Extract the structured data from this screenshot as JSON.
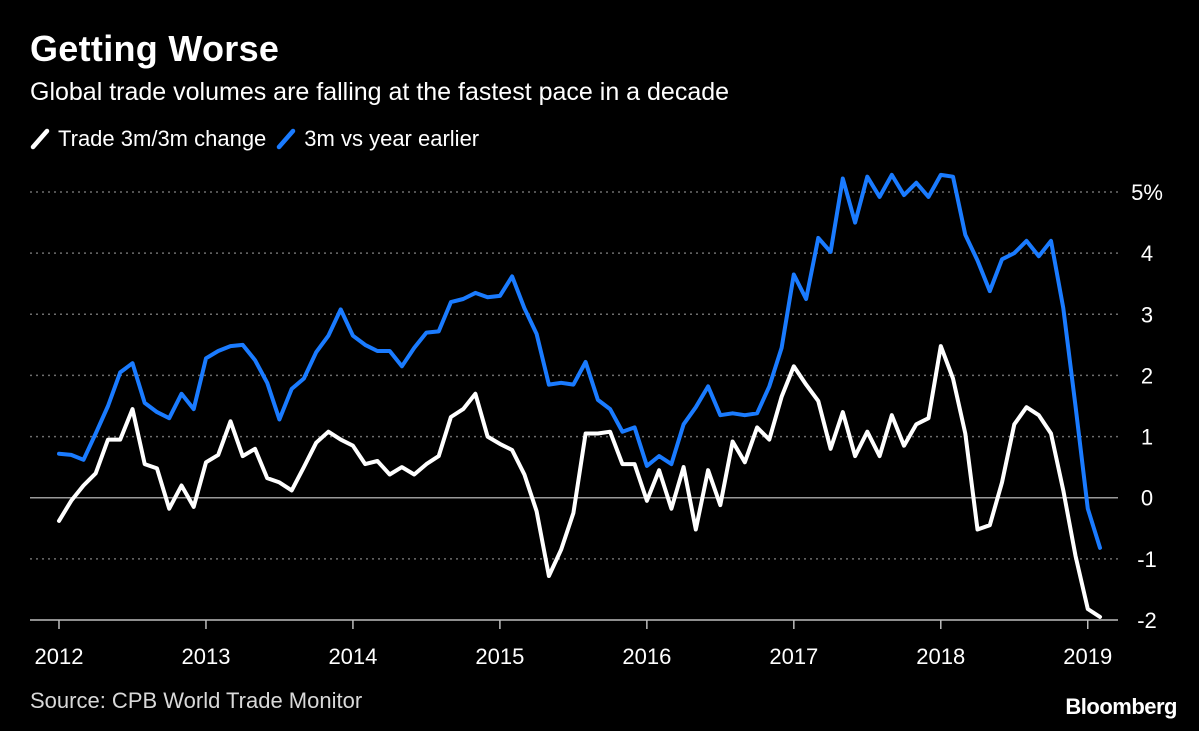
{
  "title": "Getting Worse",
  "subtitle": "Global trade volumes are falling at the fastest pace in a decade",
  "source": "Source: CPB World Trade Monitor",
  "brand": "Bloomberg",
  "colors": {
    "background": "#000000",
    "white_series": "#ffffff",
    "blue_series": "#1a7bff",
    "grid": "#6e6e6e",
    "zero": "#9a9a9a"
  },
  "chart_data": {
    "type": "line",
    "legend_placement": "top-left",
    "grid": true,
    "ylim": [
      -2,
      5
    ],
    "xlim": [
      "2012-01",
      "2019-02"
    ],
    "y_ticks": [
      {
        "value": 5,
        "label": "5%"
      },
      {
        "value": 4,
        "label": "4"
      },
      {
        "value": 3,
        "label": "3"
      },
      {
        "value": 2,
        "label": "2"
      },
      {
        "value": 1,
        "label": "1"
      },
      {
        "value": 0,
        "label": "0"
      },
      {
        "value": -1,
        "label": "-1"
      },
      {
        "value": -2,
        "label": "-2"
      }
    ],
    "x_ticks": [
      {
        "value": "2012-01",
        "label": "2012"
      },
      {
        "value": "2013-01",
        "label": "2013"
      },
      {
        "value": "2014-01",
        "label": "2014"
      },
      {
        "value": "2015-01",
        "label": "2015"
      },
      {
        "value": "2016-01",
        "label": "2016"
      },
      {
        "value": "2017-01",
        "label": "2017"
      },
      {
        "value": "2018-01",
        "label": "2018"
      },
      {
        "value": "2019-01",
        "label": "2019"
      }
    ],
    "x": [
      "2012-01",
      "2012-02",
      "2012-03",
      "2012-04",
      "2012-05",
      "2012-06",
      "2012-07",
      "2012-08",
      "2012-09",
      "2012-10",
      "2012-11",
      "2012-12",
      "2013-01",
      "2013-02",
      "2013-03",
      "2013-04",
      "2013-05",
      "2013-06",
      "2013-07",
      "2013-08",
      "2013-09",
      "2013-10",
      "2013-11",
      "2013-12",
      "2014-01",
      "2014-02",
      "2014-03",
      "2014-04",
      "2014-05",
      "2014-06",
      "2014-07",
      "2014-08",
      "2014-09",
      "2014-10",
      "2014-11",
      "2014-12",
      "2015-01",
      "2015-02",
      "2015-03",
      "2015-04",
      "2015-05",
      "2015-06",
      "2015-07",
      "2015-08",
      "2015-09",
      "2015-10",
      "2015-11",
      "2015-12",
      "2016-01",
      "2016-02",
      "2016-03",
      "2016-04",
      "2016-05",
      "2016-06",
      "2016-07",
      "2016-08",
      "2016-09",
      "2016-10",
      "2016-11",
      "2016-12",
      "2017-01",
      "2017-02",
      "2017-03",
      "2017-04",
      "2017-05",
      "2017-06",
      "2017-07",
      "2017-08",
      "2017-09",
      "2017-10",
      "2017-11",
      "2017-12",
      "2018-01",
      "2018-02",
      "2018-03",
      "2018-04",
      "2018-05",
      "2018-06",
      "2018-07",
      "2018-08",
      "2018-09",
      "2018-10",
      "2018-11",
      "2018-12",
      "2019-01",
      "2019-02"
    ],
    "series": [
      {
        "name": "Trade 3m/3m change",
        "color": "#ffffff",
        "values": [
          -0.38,
          -0.05,
          0.2,
          0.4,
          0.95,
          0.95,
          1.45,
          0.55,
          0.48,
          -0.18,
          0.2,
          -0.15,
          0.58,
          0.7,
          1.25,
          0.68,
          0.8,
          0.32,
          0.25,
          0.12,
          0.5,
          0.9,
          1.08,
          0.95,
          0.85,
          0.55,
          0.6,
          0.38,
          0.5,
          0.38,
          0.55,
          0.68,
          1.32,
          1.45,
          1.7,
          1.0,
          0.88,
          0.78,
          0.38,
          -0.22,
          -1.28,
          -0.85,
          -0.25,
          1.05,
          1.05,
          1.08,
          0.55,
          0.55,
          -0.05,
          0.45,
          -0.18,
          0.5,
          -0.52,
          0.45,
          -0.12,
          0.92,
          0.58,
          1.15,
          0.95,
          1.65,
          2.15,
          1.85,
          1.58,
          0.8,
          1.4,
          0.68,
          1.08,
          0.68,
          1.35,
          0.85,
          1.2,
          1.3,
          2.48,
          1.95,
          1.05,
          -0.52,
          -0.45,
          0.25,
          1.2,
          1.48,
          1.35,
          1.05,
          0.12,
          -0.95,
          -1.82,
          -1.95
        ]
      },
      {
        "name": "3m vs year earlier",
        "color": "#1a7bff",
        "values": [
          0.72,
          0.7,
          0.62,
          1.05,
          1.5,
          2.05,
          2.2,
          1.55,
          1.4,
          1.3,
          1.7,
          1.45,
          2.28,
          2.4,
          2.48,
          2.5,
          2.25,
          1.88,
          1.28,
          1.78,
          1.95,
          2.38,
          2.65,
          3.08,
          2.65,
          2.5,
          2.4,
          2.4,
          2.15,
          2.45,
          2.7,
          2.72,
          3.2,
          3.25,
          3.35,
          3.28,
          3.3,
          3.62,
          3.1,
          2.68,
          1.85,
          1.88,
          1.85,
          2.22,
          1.6,
          1.45,
          1.08,
          1.15,
          0.52,
          0.68,
          0.55,
          1.2,
          1.48,
          1.82,
          1.35,
          1.38,
          1.35,
          1.38,
          1.82,
          2.45,
          3.65,
          3.25,
          4.25,
          4.02,
          5.22,
          4.5,
          5.25,
          4.92,
          5.28,
          4.95,
          5.15,
          4.92,
          5.28,
          5.25,
          4.3,
          3.88,
          3.38,
          3.9,
          4.0,
          4.2,
          3.95,
          4.2,
          3.1,
          1.5,
          -0.18,
          -0.82
        ]
      }
    ]
  }
}
